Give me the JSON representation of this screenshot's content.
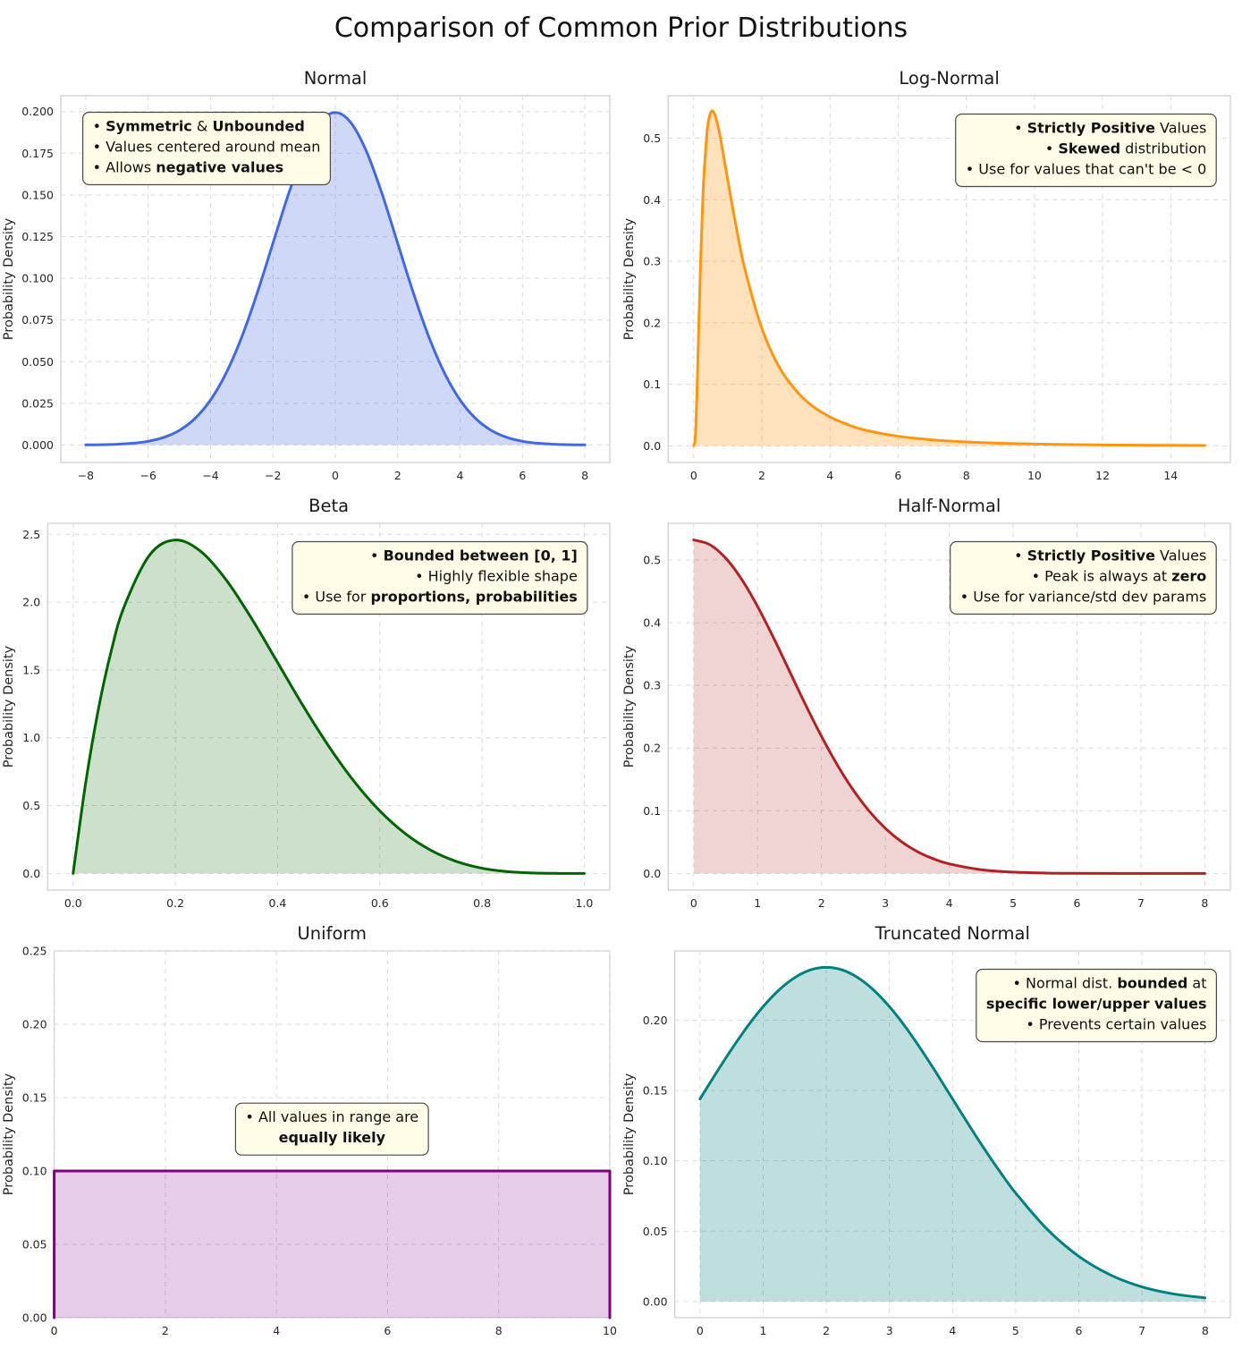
{
  "figure": {
    "title": "Comparison of Common Prior Distributions"
  },
  "style": {
    "frame_color": "#cccccc",
    "grid_color": "#d9d9d9",
    "text_color": "#262626",
    "annotation_bg": "#fffde7",
    "annotation_border": "#4a4a4a",
    "annotation_text": "#111111"
  },
  "chart_data": [
    {
      "id": "normal",
      "type": "area",
      "title": "Normal",
      "ylabel": "Probability Density",
      "color": "#4169e1",
      "fill_opacity": 0.25,
      "grid": true,
      "legend": null,
      "smooth": true,
      "xlim": [
        -8.8,
        8.8
      ],
      "ylim": [
        -0.0105,
        0.2095
      ],
      "xticks": [
        -8,
        -6,
        -4,
        -2,
        0,
        2,
        4,
        6,
        8
      ],
      "xtick_labels": [
        "−8",
        "−6",
        "−4",
        "−2",
        "0",
        "2",
        "4",
        "6",
        "8"
      ],
      "yticks": [
        0,
        0.025,
        0.05,
        0.075,
        0.1,
        0.125,
        0.15,
        0.175,
        0.2
      ],
      "ytick_labels": [
        "0.000",
        "0.025",
        "0.050",
        "0.075",
        "0.100",
        "0.125",
        "0.150",
        "0.175",
        "0.200"
      ],
      "x": [
        -8,
        -7.5,
        -7,
        -6.5,
        -6,
        -5.5,
        -5,
        -4.5,
        -4,
        -3.5,
        -3,
        -2.5,
        -2,
        -1.5,
        -1,
        -0.5,
        0,
        0.5,
        1,
        1.5,
        2,
        2.5,
        3,
        3.5,
        4,
        4.5,
        5,
        5.5,
        6,
        6.5,
        7,
        7.5,
        8
      ],
      "y": [
        7e-05,
        0.00018,
        0.00044,
        0.00101,
        0.00222,
        0.00455,
        0.00876,
        0.01586,
        0.027,
        0.04314,
        0.06476,
        0.09133,
        0.12098,
        0.15057,
        0.17603,
        0.19333,
        0.19947,
        0.19333,
        0.17603,
        0.15057,
        0.12098,
        0.09133,
        0.06476,
        0.04314,
        0.027,
        0.01586,
        0.00876,
        0.00455,
        0.00222,
        0.00101,
        0.00044,
        0.00018,
        7e-05
      ],
      "annotation": {
        "anchor": [
          0.04,
          0.955
        ],
        "ha": "left",
        "align": "left",
        "lines": [
          [
            {
              "t": "• "
            },
            {
              "t": "Symmetric",
              "b": 1
            },
            {
              "t": " & "
            },
            {
              "t": "Unbounded",
              "b": 1
            }
          ],
          [
            {
              "t": "• Values centered around mean"
            }
          ],
          [
            {
              "t": "• Allows "
            },
            {
              "t": "negative values",
              "b": 1
            }
          ]
        ]
      }
    },
    {
      "id": "lognormal",
      "type": "area",
      "title": "Log-Normal",
      "ylabel": "Probability Density",
      "color": "#ff9510",
      "fill_opacity": 0.28,
      "grid": true,
      "legend": null,
      "smooth": true,
      "xlim": [
        -0.75,
        15.75
      ],
      "ylim": [
        -0.0271,
        0.5691
      ],
      "xticks": [
        0,
        2,
        4,
        6,
        8,
        10,
        12,
        14
      ],
      "xtick_labels": [
        "0",
        "2",
        "4",
        "6",
        "8",
        "10",
        "12",
        "14"
      ],
      "yticks": [
        0,
        0.1,
        0.2,
        0.3,
        0.4,
        0.5
      ],
      "ytick_labels": [
        "0.0",
        "0.1",
        "0.2",
        "0.3",
        "0.4",
        "0.5"
      ],
      "x": [
        0,
        0.05,
        0.1,
        0.15,
        0.2,
        0.25,
        0.3,
        0.4,
        0.5,
        0.6,
        0.7,
        0.8,
        1,
        1.25,
        1.5,
        2,
        2.5,
        3,
        3.5,
        4,
        4.5,
        5,
        6,
        7,
        8,
        9,
        10,
        11,
        12,
        13,
        14,
        15
      ],
      "y": [
        0,
        0.016,
        0.093,
        0.196,
        0.294,
        0.375,
        0.438,
        0.514,
        0.542,
        0.541,
        0.523,
        0.496,
        0.432,
        0.355,
        0.288,
        0.191,
        0.129,
        0.09,
        0.064,
        0.047,
        0.035,
        0.026,
        0.0155,
        0.0097,
        0.0063,
        0.0042,
        0.0029,
        0.002,
        0.0015,
        0.0011,
        0.0008,
        0.0006
      ],
      "annotation": {
        "anchor": [
          0.975,
          0.95
        ],
        "ha": "right",
        "align": "right",
        "lines": [
          [
            {
              "t": "• "
            },
            {
              "t": "Strictly Positive",
              "b": 1
            },
            {
              "t": " Values"
            }
          ],
          [
            {
              "t": "• "
            },
            {
              "t": "Skewed",
              "b": 1
            },
            {
              "t": " distribution"
            }
          ],
          [
            {
              "t": "• Use for values that can't be < 0"
            }
          ]
        ]
      }
    },
    {
      "id": "beta",
      "type": "area",
      "title": "Beta",
      "ylabel": "Probability Density",
      "color": "#006400",
      "fill_opacity": 0.2,
      "grid": true,
      "legend": null,
      "smooth": true,
      "xlim": [
        -0.05,
        1.05
      ],
      "ylim": [
        -0.123,
        2.581
      ],
      "xticks": [
        0,
        0.2,
        0.4,
        0.6,
        0.8,
        1
      ],
      "xtick_labels": [
        "0.0",
        "0.2",
        "0.4",
        "0.6",
        "0.8",
        "1.0"
      ],
      "yticks": [
        0,
        0.5,
        1,
        1.5,
        2,
        2.5
      ],
      "ytick_labels": [
        "0.0",
        "0.5",
        "1.0",
        "1.5",
        "2.0",
        "2.5"
      ],
      "x": [
        0,
        0.025,
        0.05,
        0.075,
        0.1,
        0.15,
        0.2,
        0.25,
        0.3,
        0.35,
        0.4,
        0.45,
        0.5,
        0.55,
        0.6,
        0.65,
        0.7,
        0.75,
        0.8,
        0.85,
        0.9,
        0.95,
        1
      ],
      "y": [
        0,
        0.678,
        1.222,
        1.647,
        1.968,
        2.349,
        2.458,
        2.373,
        2.161,
        1.874,
        1.555,
        1.235,
        0.938,
        0.677,
        0.461,
        0.293,
        0.17,
        0.088,
        0.038,
        0.013,
        0.003,
        0.0002,
        0
      ],
      "annotation": {
        "anchor": [
          0.96,
          0.95
        ],
        "ha": "right",
        "align": "right",
        "lines": [
          [
            {
              "t": "• "
            },
            {
              "t": "Bounded between [0, 1]",
              "b": 1
            }
          ],
          [
            {
              "t": "• Highly flexible shape"
            }
          ],
          [
            {
              "t": "• Use for "
            },
            {
              "t": "proportions, probabilities",
              "b": 1
            }
          ]
        ]
      }
    },
    {
      "id": "halfnormal",
      "type": "area",
      "title": "Half-Normal",
      "ylabel": "Probability Density",
      "color": "#b22222",
      "fill_opacity": 0.2,
      "grid": true,
      "legend": null,
      "smooth": true,
      "xlim": [
        -0.4,
        8.4
      ],
      "ylim": [
        -0.0266,
        0.5585
      ],
      "xticks": [
        0,
        1,
        2,
        3,
        4,
        5,
        6,
        7,
        8
      ],
      "xtick_labels": [
        "0",
        "1",
        "2",
        "3",
        "4",
        "5",
        "6",
        "7",
        "8"
      ],
      "yticks": [
        0,
        0.1,
        0.2,
        0.3,
        0.4,
        0.5
      ],
      "ytick_labels": [
        "0.0",
        "0.1",
        "0.2",
        "0.3",
        "0.4",
        "0.5"
      ],
      "x": [
        0,
        0.25,
        0.5,
        0.75,
        1,
        1.25,
        1.5,
        1.75,
        2,
        2.25,
        2.5,
        2.75,
        3,
        3.25,
        3.5,
        3.75,
        4,
        4.5,
        5,
        5.5,
        6,
        7,
        8
      ],
      "y": [
        0.532,
        0.5246,
        0.5031,
        0.4694,
        0.4259,
        0.3759,
        0.3226,
        0.2693,
        0.2187,
        0.1727,
        0.1327,
        0.0991,
        0.072,
        0.0508,
        0.0349,
        0.0234,
        0.0152,
        0.0059,
        0.0021,
        0.0006,
        0.0002,
        0,
        0
      ],
      "annotation": {
        "anchor": [
          0.975,
          0.95
        ],
        "ha": "right",
        "align": "right",
        "lines": [
          [
            {
              "t": "• "
            },
            {
              "t": "Strictly Positive",
              "b": 1
            },
            {
              "t": " Values"
            }
          ],
          [
            {
              "t": "• Peak is always at "
            },
            {
              "t": "zero",
              "b": 1
            }
          ],
          [
            {
              "t": "• Use for variance/std dev params"
            }
          ]
        ]
      }
    },
    {
      "id": "uniform",
      "type": "area",
      "title": "Uniform",
      "ylabel": "Probability Density",
      "color": "#800080",
      "fill_opacity": 0.2,
      "grid": true,
      "legend": null,
      "smooth": false,
      "xlim": [
        0,
        10
      ],
      "ylim": [
        0,
        0.25
      ],
      "xticks": [
        0,
        2,
        4,
        6,
        8,
        10
      ],
      "xtick_labels": [
        "0",
        "2",
        "4",
        "6",
        "8",
        "10"
      ],
      "yticks": [
        0,
        0.05,
        0.1,
        0.15,
        0.2,
        0.25
      ],
      "ytick_labels": [
        "0.00",
        "0.05",
        "0.10",
        "0.15",
        "0.20",
        "0.25"
      ],
      "x": [
        0,
        0,
        10,
        10
      ],
      "y": [
        0,
        0.1,
        0.1,
        0
      ],
      "annotation": {
        "anchor": [
          0.5,
          0.585
        ],
        "ha": "center",
        "align": "center",
        "lines": [
          [
            {
              "t": "• All values in range are"
            }
          ],
          [
            {
              "t": "equally likely",
              "b": 1
            }
          ]
        ]
      }
    },
    {
      "id": "truncnorm",
      "type": "area",
      "title": "Truncated Normal",
      "ylabel": "Probability Density",
      "color": "#008080",
      "fill_opacity": 0.25,
      "grid": true,
      "legend": null,
      "smooth": true,
      "xlim": [
        -0.4,
        8.4
      ],
      "ylim": [
        -0.0115,
        0.2492
      ],
      "xticks": [
        0,
        1,
        2,
        3,
        4,
        5,
        6,
        7,
        8
      ],
      "xtick_labels": [
        "0",
        "1",
        "2",
        "3",
        "4",
        "5",
        "6",
        "7",
        "8"
      ],
      "yticks": [
        0,
        0.05,
        0.1,
        0.15,
        0.2
      ],
      "ytick_labels": [
        "0.00",
        "0.05",
        "0.10",
        "0.15",
        "0.20"
      ],
      "x": [
        0,
        0.25,
        0.5,
        0.75,
        1,
        1.25,
        1.5,
        1.75,
        2,
        2.25,
        2.5,
        2.75,
        3,
        3.25,
        3.5,
        3.75,
        4,
        4.25,
        4.5,
        4.75,
        5,
        5.5,
        6,
        6.5,
        7,
        7.5,
        8
      ],
      "y": [
        0.144,
        0.162,
        0.1793,
        0.1954,
        0.2096,
        0.2214,
        0.2302,
        0.2357,
        0.2375,
        0.2357,
        0.2302,
        0.2214,
        0.2096,
        0.1954,
        0.1793,
        0.162,
        0.144,
        0.1261,
        0.1087,
        0.0923,
        0.0771,
        0.0513,
        0.0321,
        0.0189,
        0.0104,
        0.0054,
        0.0026
      ],
      "annotation": {
        "anchor": [
          0.975,
          0.95
        ],
        "ha": "right",
        "align": "right",
        "lines": [
          [
            {
              "t": "• Normal dist. "
            },
            {
              "t": "bounded",
              "b": 1
            },
            {
              "t": " at"
            }
          ],
          [
            {
              "t": "specific lower/upper values",
              "b": 1
            }
          ],
          [
            {
              "t": "• Prevents certain values"
            }
          ]
        ]
      }
    }
  ]
}
